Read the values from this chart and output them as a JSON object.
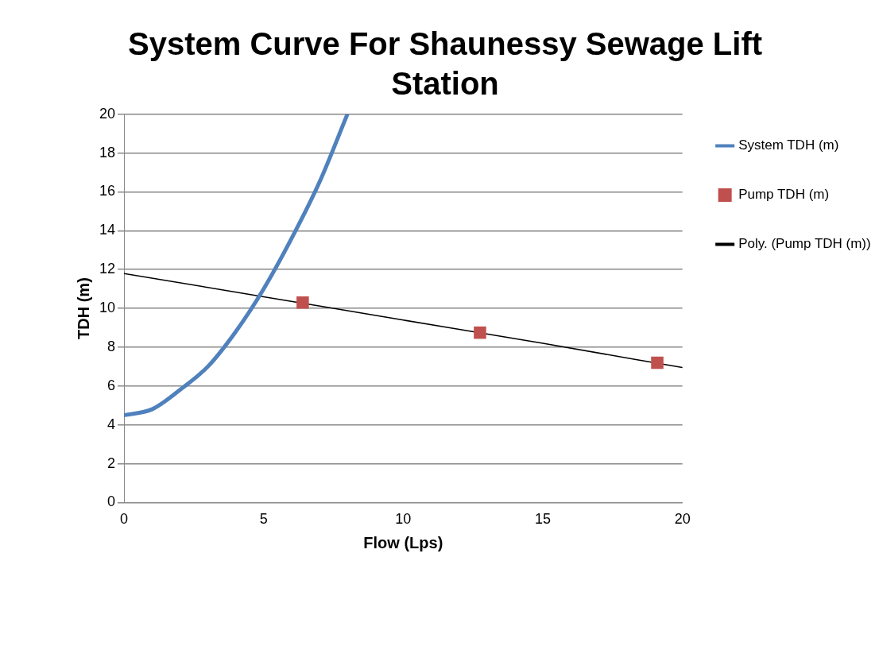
{
  "chart_data": {
    "type": "line",
    "title": "System Curve For Shaunessy Sewage Lift Station",
    "xlabel": "Flow (Lps)",
    "ylabel": "TDH (m)",
    "xlim": [
      0,
      20
    ],
    "xticks": [
      0,
      5,
      10,
      15,
      20
    ],
    "ylim": [
      0,
      20
    ],
    "yticks": [
      0,
      2,
      4,
      6,
      8,
      10,
      12,
      14,
      16,
      18,
      20
    ],
    "grid": "y",
    "legend": "top right",
    "series": [
      {
        "name": "System TDH (m)",
        "color": "#4f81bd",
        "marker": "none",
        "x": [
          0,
          1,
          2,
          3,
          4,
          5,
          6,
          7,
          8
        ],
        "values": [
          4.5,
          4.8,
          5.8,
          7.0,
          8.8,
          11.0,
          13.6,
          16.5,
          20.0
        ]
      },
      {
        "name": "Pump TDH (m)",
        "type": "scatter",
        "color": "#c0504d",
        "marker": "square",
        "x": [
          6.4,
          12.75,
          19.1
        ],
        "values": [
          10.3,
          8.75,
          7.2
        ]
      },
      {
        "name": "Poly. (Pump TDH (m))",
        "color": "#000000",
        "marker": "none",
        "x": [
          0,
          5,
          10,
          15,
          20
        ],
        "values": [
          11.8,
          10.6,
          9.4,
          8.2,
          6.95
        ]
      }
    ]
  }
}
